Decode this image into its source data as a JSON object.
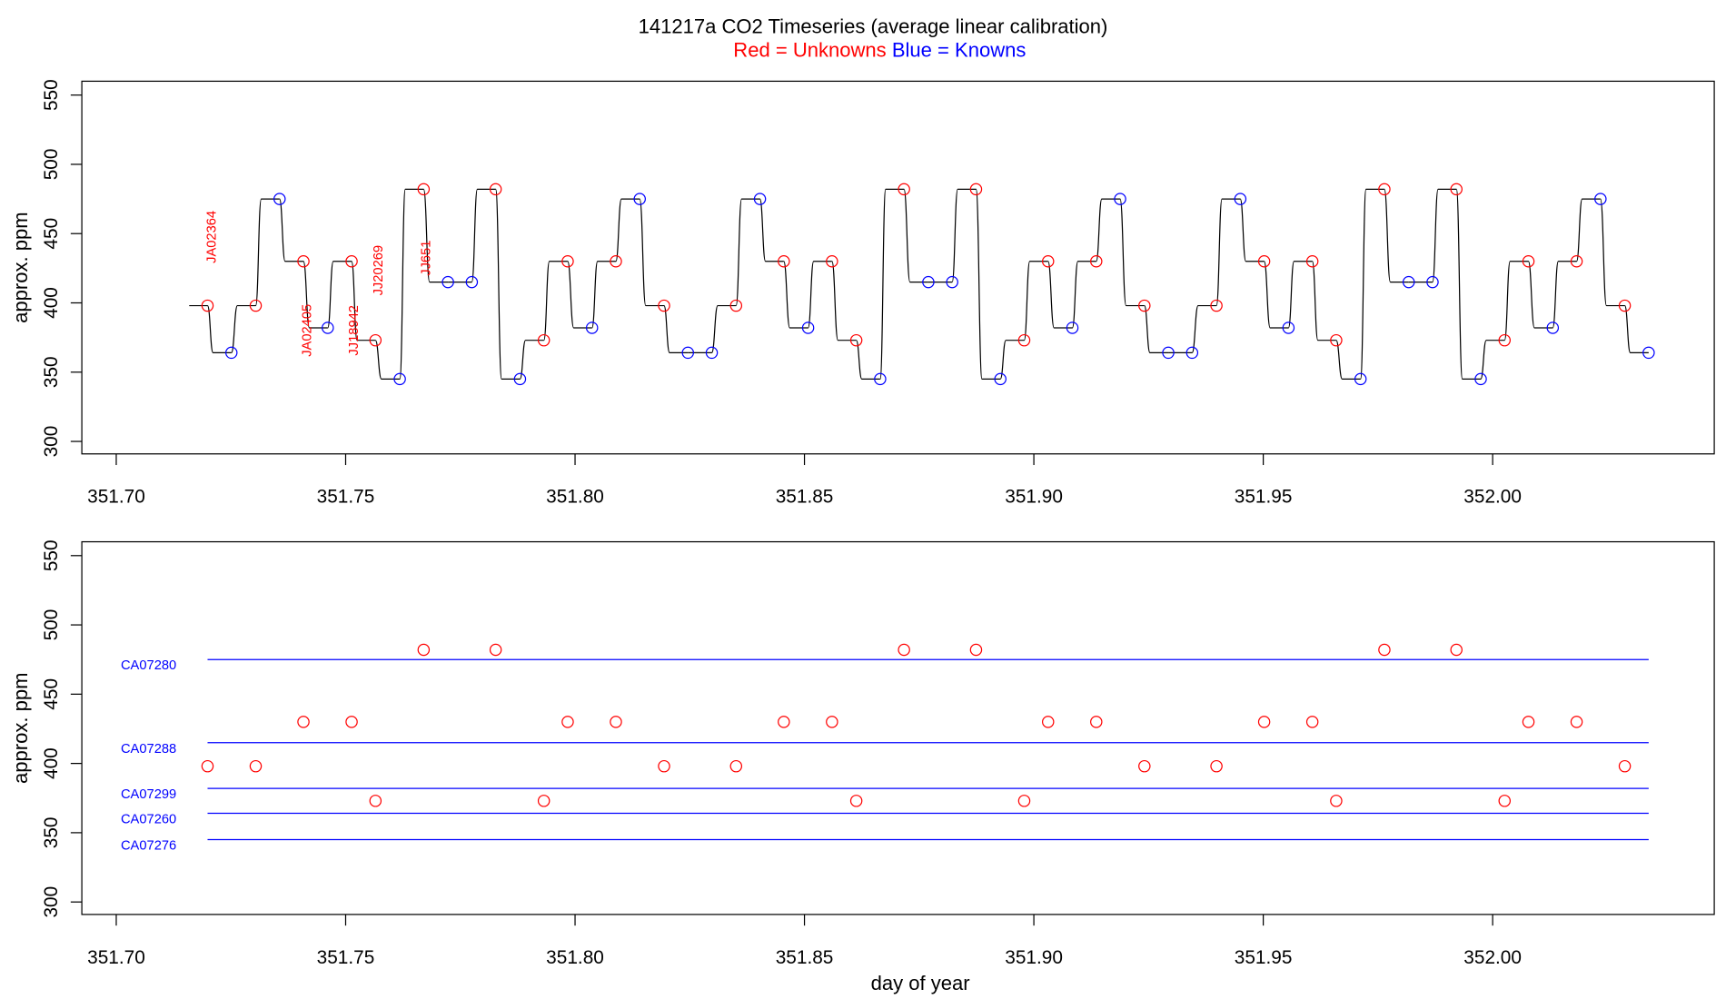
{
  "chart_data": [
    {
      "type": "line",
      "title": "141217a   CO2 Timeseries (average linear calibration)",
      "legend": [
        {
          "text": "Red = Unknowns",
          "color": "#ff0000"
        },
        {
          "text": "Blue = Knowns",
          "color": "#0000ff"
        }
      ],
      "y_label": "approx. ppm",
      "annotations": [
        "JA02364",
        "JA02405",
        "JJ18942",
        "JJ20269",
        "JJ651"
      ],
      "annotation_color": "#ff0000",
      "line_color": "#000000",
      "x": [
        351.7199,
        351.7251,
        351.7304,
        351.7356,
        351.7408,
        351.7461,
        351.7513,
        351.7565,
        351.7618,
        351.767,
        351.7723,
        351.7775,
        351.7827,
        351.788,
        351.7932,
        351.7984,
        351.8037,
        351.8089,
        351.8141,
        351.8194,
        351.8246,
        351.8298,
        351.8351,
        351.8403,
        351.8455,
        351.8508,
        351.856,
        351.8613,
        351.8665,
        351.8717,
        351.877,
        351.8822,
        351.8874,
        351.8927,
        351.8979,
        351.9031,
        351.9084,
        351.9136,
        351.9188,
        351.9241,
        351.9293,
        351.9345,
        351.9398,
        351.945,
        351.9502,
        351.9555,
        351.9607,
        351.9659,
        351.9712,
        351.9764,
        351.9817,
        351.9869,
        351.9921,
        351.9974,
        352.0026,
        352.0078,
        352.0131,
        352.0183,
        352.0235,
        352.0288,
        352.034
      ],
      "values": [
        398,
        364,
        398,
        475,
        430,
        382,
        430,
        373,
        345,
        482,
        415,
        415,
        482,
        345,
        373,
        430,
        382,
        430,
        475,
        398,
        364,
        364,
        398,
        475,
        430,
        382,
        430,
        373,
        345,
        482,
        415,
        415,
        482,
        345,
        373,
        430,
        382,
        430,
        475,
        398,
        364,
        364,
        398,
        475,
        430,
        382,
        430,
        373,
        345,
        482,
        415,
        415,
        482,
        345,
        373,
        430,
        382,
        430,
        475,
        398,
        364
      ],
      "point_colors": [
        "#ff0000",
        "#0000ff",
        "#ff0000",
        "#0000ff",
        "#ff0000",
        "#0000ff",
        "#ff0000",
        "#ff0000",
        "#0000ff",
        "#ff0000",
        "#0000ff",
        "#0000ff",
        "#ff0000",
        "#0000ff",
        "#ff0000",
        "#ff0000",
        "#0000ff",
        "#ff0000",
        "#0000ff",
        "#ff0000",
        "#0000ff",
        "#0000ff",
        "#ff0000",
        "#0000ff",
        "#ff0000",
        "#0000ff",
        "#ff0000",
        "#ff0000",
        "#0000ff",
        "#ff0000",
        "#0000ff",
        "#0000ff",
        "#ff0000",
        "#0000ff",
        "#ff0000",
        "#ff0000",
        "#0000ff",
        "#ff0000",
        "#0000ff",
        "#ff0000",
        "#0000ff",
        "#0000ff",
        "#ff0000",
        "#0000ff",
        "#ff0000",
        "#0000ff",
        "#ff0000",
        "#ff0000",
        "#0000ff",
        "#ff0000",
        "#0000ff",
        "#0000ff",
        "#ff0000",
        "#0000ff",
        "#ff0000",
        "#ff0000",
        "#0000ff",
        "#ff0000",
        "#0000ff",
        "#ff0000",
        "#0000ff"
      ],
      "xlim": [
        351.6925,
        352.0483
      ],
      "xticks": [
        {
          "value": 351.7,
          "label": "351.70"
        },
        {
          "value": 351.75,
          "label": "351.75"
        },
        {
          "value": 351.8,
          "label": "351.80"
        },
        {
          "value": 351.85,
          "label": "351.85"
        },
        {
          "value": 351.9,
          "label": "351.90"
        },
        {
          "value": 351.95,
          "label": "351.95"
        },
        {
          "value": 352.0,
          "label": "352.00"
        }
      ],
      "ylim": [
        291,
        560
      ],
      "yticks": [
        300,
        350,
        400,
        450,
        500,
        550
      ]
    },
    {
      "type": "scatter",
      "x_label": "day of year",
      "y_label": "approx. ppm",
      "color": "#ff0000",
      "x": [
        351.7199,
        351.7304,
        351.7408,
        351.7513,
        351.7565,
        351.767,
        351.7827,
        351.7932,
        351.7984,
        351.8089,
        351.8194,
        351.8351,
        351.8455,
        351.856,
        351.8613,
        351.8717,
        351.8874,
        351.8979,
        351.9031,
        351.9136,
        351.9241,
        351.9398,
        351.9502,
        351.9607,
        351.9659,
        351.9764,
        351.9921,
        352.0026,
        352.0078,
        352.0183,
        352.0288
      ],
      "values": [
        398,
        398,
        430,
        430,
        373,
        482,
        482,
        373,
        430,
        430,
        398,
        398,
        430,
        430,
        373,
        482,
        482,
        373,
        430,
        430,
        398,
        398,
        430,
        430,
        373,
        482,
        482,
        373,
        430,
        430,
        398
      ],
      "reference_color": "#0000ff",
      "reference_x": [
        351.7199,
        352.034
      ],
      "references": [
        {
          "label": "CA07280",
          "value": 475
        },
        {
          "label": "CA07288",
          "value": 415
        },
        {
          "label": "CA07299",
          "value": 382
        },
        {
          "label": "CA07260",
          "value": 364
        },
        {
          "label": "CA07276",
          "value": 345
        }
      ],
      "xlim": [
        351.6925,
        352.0483
      ],
      "xticks": [
        {
          "value": 351.7,
          "label": "351.70"
        },
        {
          "value": 351.75,
          "label": "351.75"
        },
        {
          "value": 351.8,
          "label": "351.80"
        },
        {
          "value": 351.85,
          "label": "351.85"
        },
        {
          "value": 351.9,
          "label": "351.90"
        },
        {
          "value": 351.95,
          "label": "351.95"
        },
        {
          "value": 352.0,
          "label": "352.00"
        }
      ],
      "ylim": [
        291,
        560
      ],
      "yticks": [
        300,
        350,
        400,
        450,
        500,
        550
      ]
    }
  ]
}
